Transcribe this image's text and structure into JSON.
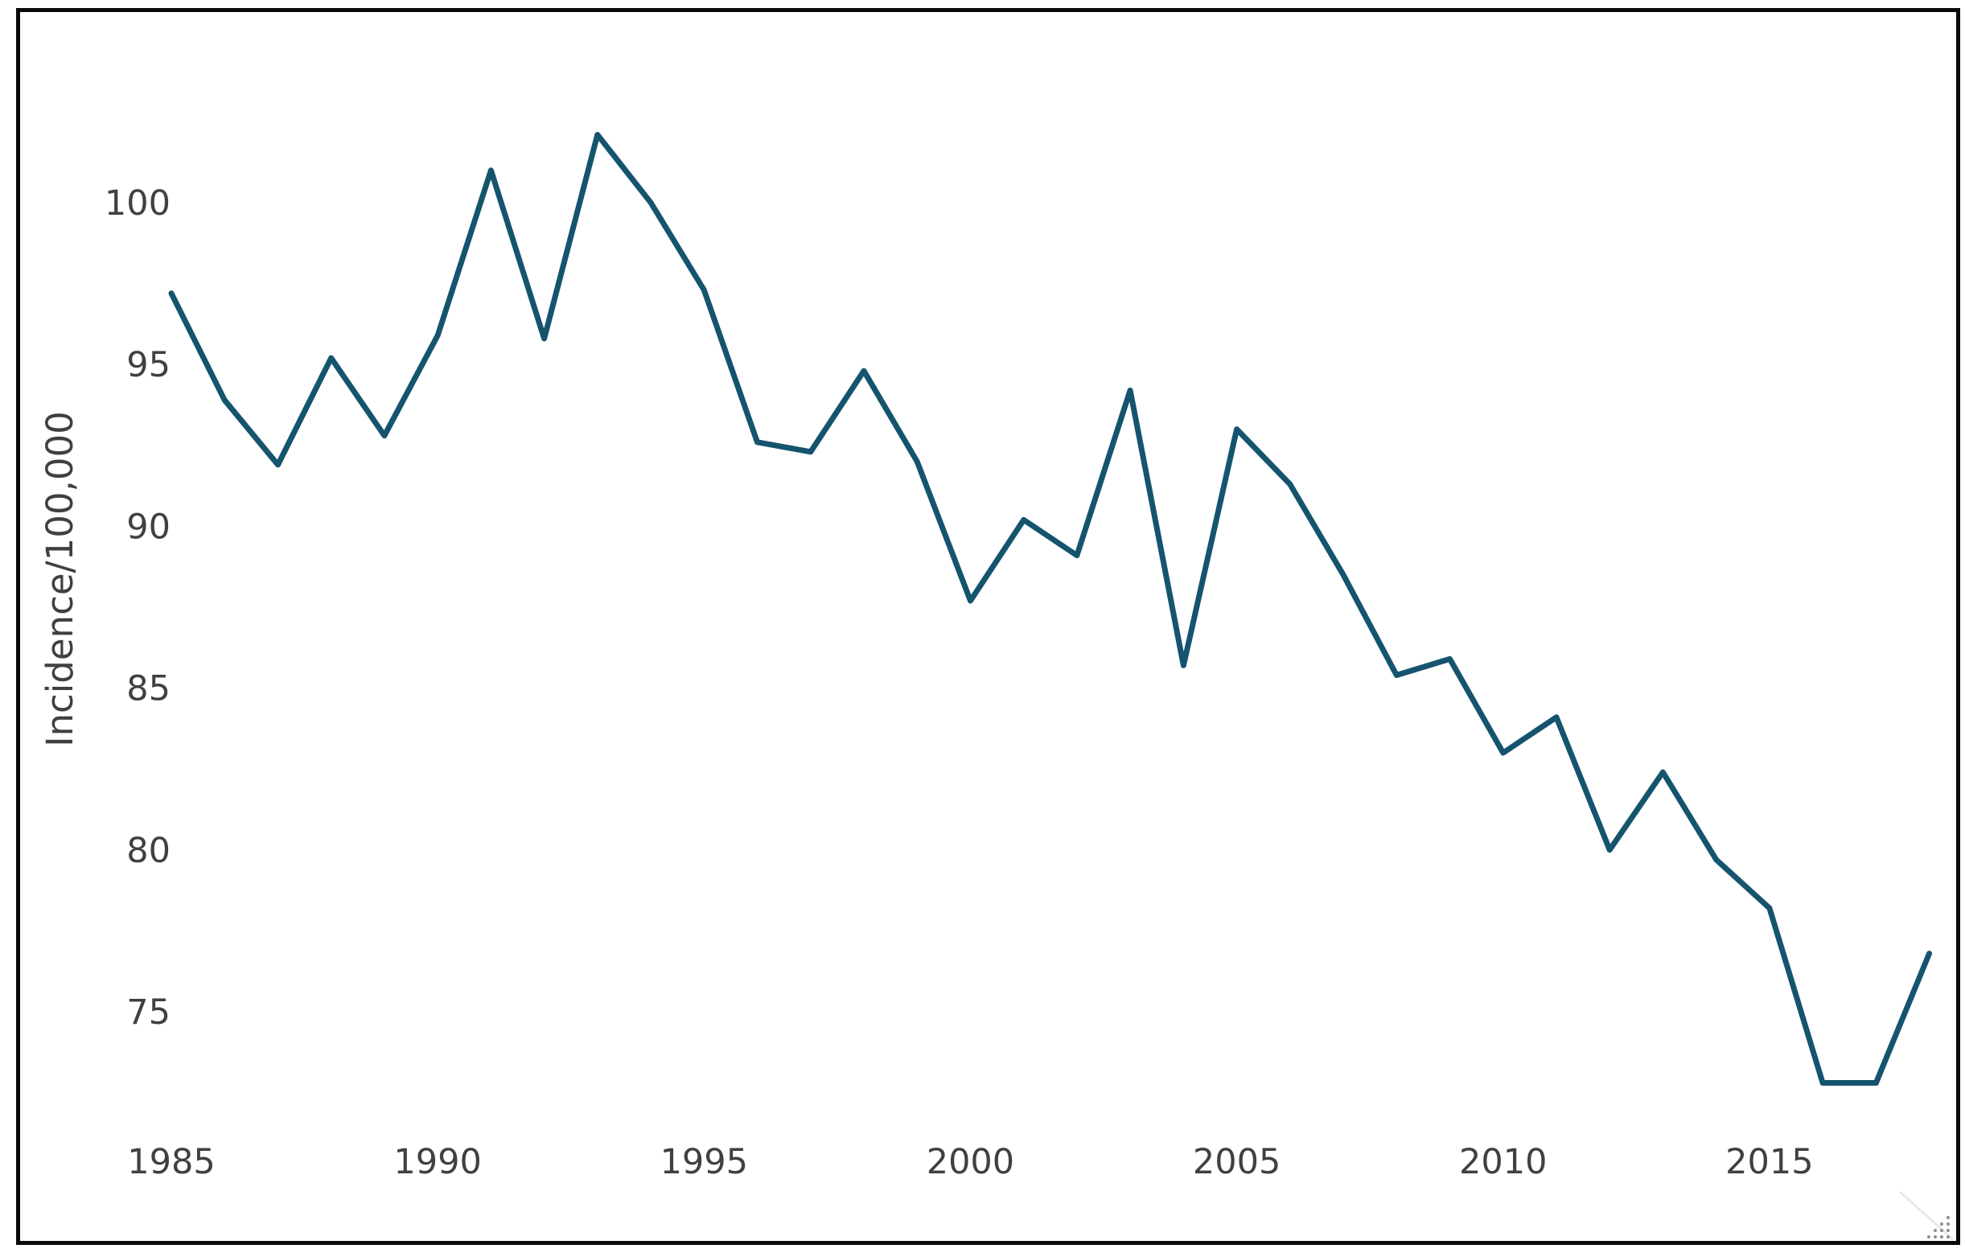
{
  "frame": {
    "border_color": "#0a0a0a",
    "background": "#ffffff"
  },
  "chart_data": {
    "type": "line",
    "title": "",
    "xlabel": "",
    "ylabel": "Incidence/100,000",
    "x": [
      1985,
      1986,
      1987,
      1988,
      1989,
      1990,
      1991,
      1992,
      1993,
      1994,
      1995,
      1996,
      1997,
      1998,
      1999,
      2000,
      2001,
      2002,
      2003,
      2004,
      2005,
      2006,
      2007,
      2008,
      2009,
      2010,
      2011,
      2012,
      2013,
      2014,
      2015,
      2016,
      2017,
      2018
    ],
    "series": [
      {
        "name": "Incidence per 100,000",
        "values": [
          97.2,
          93.9,
          91.9,
          95.2,
          92.8,
          95.9,
          101.0,
          95.8,
          102.1,
          100.0,
          97.3,
          92.6,
          92.3,
          94.8,
          92.0,
          87.7,
          90.2,
          89.1,
          94.2,
          85.7,
          93.0,
          91.3,
          88.5,
          85.4,
          85.9,
          83.0,
          84.1,
          80.0,
          82.4,
          79.7,
          78.2,
          72.8,
          72.8,
          76.8
        ]
      }
    ],
    "xticks": [
      1985,
      1990,
      1995,
      2000,
      2005,
      2010,
      2015
    ],
    "yticks": [
      75,
      80,
      85,
      90,
      95,
      100
    ],
    "xlim": [
      1985,
      2018
    ],
    "ylim": [
      72,
      103.5
    ],
    "grid": false,
    "legend_position": "none",
    "line_color": "#15546e",
    "axis_text_color": "#404040"
  }
}
